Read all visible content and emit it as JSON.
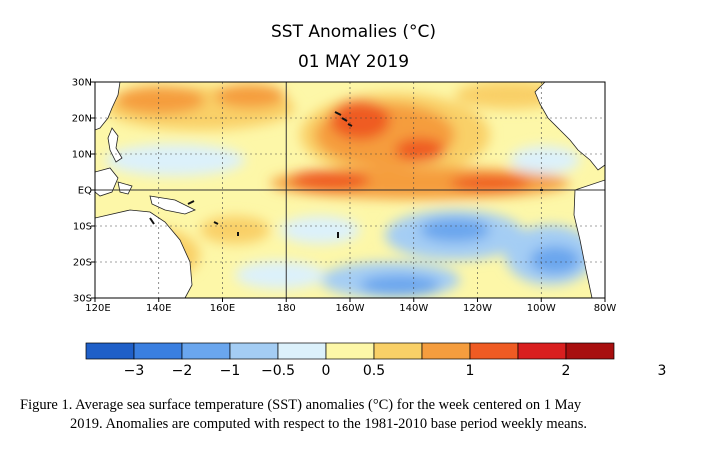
{
  "title": "SST Anomalies (°C)",
  "subtitle": "01 MAY 2019",
  "map": {
    "lat_ticks": [
      "30N",
      "20N",
      "10N",
      "EQ",
      "10S",
      "20S",
      "30S"
    ],
    "lon_ticks": [
      "120E",
      "140E",
      "160E",
      "180",
      "160W",
      "140W",
      "120W",
      "100W",
      "80W"
    ],
    "colors": {
      "land": "#ffffff",
      "neutral": "#fdf7c3"
    }
  },
  "colorbar": {
    "colors": [
      "#1f5fc8",
      "#3a7fe0",
      "#6aa6ee",
      "#a4cdf4",
      "#dcf1fb",
      "#fdf7a8",
      "#f9d067",
      "#f59d3e",
      "#ef5b23",
      "#d91f1f",
      "#a80f0f"
    ],
    "labels": [
      "−3",
      "−2",
      "−1",
      "−0.5",
      "0",
      "0.5",
      "1",
      "2",
      "3"
    ]
  },
  "caption": {
    "line1": "Figure 1. Average sea surface temperature (SST) anomalies (°C) for the week centered on 1 May",
    "line2": "2019.  Anomalies are computed with respect to the 1981-2010 base period weekly means."
  }
}
